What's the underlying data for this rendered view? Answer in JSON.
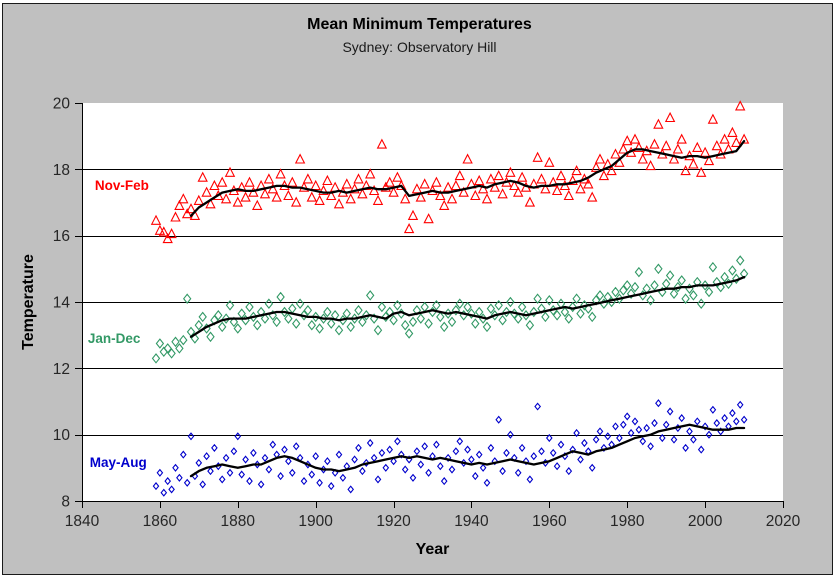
{
  "chart_data": {
    "type": "scatter",
    "title": "Mean Minimum Temperatures",
    "subtitle": "Sydney: Observatory Hill",
    "xlabel": "Year",
    "ylabel": "Temperature",
    "xlim": [
      1840,
      2020
    ],
    "ylim": [
      8,
      20
    ],
    "x_ticks": [
      1840,
      1860,
      1880,
      1900,
      1920,
      1940,
      1960,
      1980,
      2000,
      2020
    ],
    "y_ticks": [
      8,
      10,
      12,
      14,
      16,
      18,
      20
    ],
    "grid_y": [
      10,
      12,
      14,
      16,
      18
    ],
    "background": "#c0c0c0",
    "plot_background": "#ffffff",
    "axis_color": "#000000",
    "tick_label_color": "#262626",
    "trend_color": "#000000",
    "legend_position": "inline-left-labels",
    "series": [
      {
        "name": "Nov-Feb",
        "color": "#ff0000",
        "marker": "triangle",
        "label_pos": {
          "year": 1843.3,
          "temp": 17.53
        },
        "scatter": {
          "start_year": 1859,
          "step": 1,
          "values": [
            16.45,
            16.15,
            16.1,
            15.9,
            16.05,
            16.55,
            16.9,
            17.1,
            16.65,
            16.8,
            16.6,
            17.05,
            17.75,
            17.3,
            16.95,
            17.5,
            17.2,
            17.6,
            17.1,
            17.9,
            17.35,
            17.0,
            17.45,
            17.15,
            17.6,
            17.3,
            16.9,
            17.5,
            17.25,
            17.7,
            17.4,
            17.15,
            17.85,
            17.5,
            17.2,
            17.6,
            17.0,
            18.3,
            17.45,
            17.7,
            17.15,
            17.5,
            17.05,
            17.35,
            17.65,
            17.2,
            17.45,
            16.95,
            17.3,
            17.55,
            17.1,
            17.4,
            17.7,
            17.25,
            17.5,
            17.85,
            17.35,
            17.05,
            18.75,
            17.45,
            17.6,
            17.3,
            17.75,
            17.5,
            17.1,
            16.2,
            16.6,
            17.4,
            17.15,
            17.55,
            16.5,
            17.35,
            17.6,
            17.2,
            16.9,
            17.45,
            17.1,
            17.5,
            17.8,
            17.3,
            18.3,
            17.55,
            17.2,
            17.65,
            17.4,
            17.1,
            17.7,
            17.45,
            17.8,
            17.25,
            17.6,
            17.9,
            17.5,
            17.3,
            17.75,
            17.45,
            17.0,
            17.55,
            18.35,
            17.7,
            17.4,
            18.2,
            17.6,
            17.35,
            17.8,
            17.5,
            17.2,
            17.65,
            17.95,
            17.4,
            17.7,
            17.55,
            17.15,
            18.05,
            18.3,
            17.8,
            18.15,
            17.95,
            18.45,
            18.2,
            18.6,
            18.85,
            18.5,
            18.9,
            18.65,
            18.3,
            18.55,
            18.1,
            18.75,
            19.35,
            18.45,
            18.7,
            19.55,
            18.3,
            18.6,
            18.9,
            17.95,
            18.4,
            18.15,
            18.65,
            17.9,
            18.5,
            18.25,
            19.5,
            18.7,
            18.45,
            18.9,
            18.6,
            19.1,
            18.8,
            19.9,
            18.9
          ]
        },
        "trend": {
          "start_year": 1868,
          "step": 2,
          "values": [
            16.6,
            16.85,
            17.0,
            17.15,
            17.3,
            17.35,
            17.4,
            17.35,
            17.35,
            17.4,
            17.45,
            17.5,
            17.5,
            17.45,
            17.45,
            17.4,
            17.35,
            17.3,
            17.3,
            17.35,
            17.3,
            17.35,
            17.4,
            17.45,
            17.4,
            17.4,
            17.45,
            17.5,
            17.2,
            17.25,
            17.3,
            17.35,
            17.3,
            17.3,
            17.35,
            17.4,
            17.45,
            17.5,
            17.45,
            17.55,
            17.6,
            17.65,
            17.6,
            17.5,
            17.45,
            17.5,
            17.5,
            17.55,
            17.55,
            17.6,
            17.65,
            17.75,
            17.9,
            18.0,
            18.1,
            18.3,
            18.5,
            18.6,
            18.6,
            18.55,
            18.5,
            18.45,
            18.4,
            18.35,
            18.4,
            18.4,
            18.35,
            18.4,
            18.45,
            18.5,
            18.55,
            18.85
          ]
        }
      },
      {
        "name": "Jan-Dec",
        "color": "#339966",
        "marker": "diamond",
        "label_pos": {
          "year": 1841.5,
          "temp": 12.91
        },
        "scatter": {
          "start_year": 1859,
          "step": 1,
          "values": [
            12.3,
            12.75,
            12.5,
            12.6,
            12.45,
            12.8,
            12.6,
            12.85,
            14.1,
            13.1,
            12.9,
            13.3,
            13.55,
            13.2,
            12.95,
            13.45,
            13.6,
            13.25,
            13.5,
            13.9,
            13.4,
            13.2,
            13.65,
            13.45,
            13.85,
            13.55,
            13.3,
            13.7,
            13.5,
            13.95,
            13.6,
            13.4,
            14.15,
            13.7,
            13.5,
            13.8,
            13.35,
            13.95,
            13.6,
            13.75,
            13.3,
            13.55,
            13.2,
            13.5,
            13.7,
            13.35,
            13.6,
            13.15,
            13.45,
            13.65,
            13.25,
            13.5,
            13.75,
            13.4,
            13.6,
            14.2,
            13.5,
            13.15,
            13.85,
            13.55,
            13.7,
            13.45,
            13.9,
            13.65,
            13.3,
            13.05,
            13.4,
            13.75,
            13.5,
            13.85,
            13.35,
            13.7,
            13.9,
            13.55,
            13.25,
            13.65,
            13.4,
            13.75,
            13.95,
            13.6,
            13.85,
            13.65,
            13.35,
            13.7,
            13.5,
            13.25,
            13.8,
            13.6,
            13.9,
            13.45,
            13.7,
            14.0,
            13.65,
            13.5,
            13.85,
            13.6,
            13.3,
            13.7,
            14.1,
            13.8,
            13.55,
            14.05,
            13.75,
            13.6,
            13.95,
            13.7,
            13.5,
            13.85,
            14.1,
            13.65,
            13.9,
            13.8,
            13.55,
            14.05,
            14.2,
            13.95,
            14.15,
            14.0,
            14.3,
            14.1,
            14.35,
            14.5,
            14.25,
            14.45,
            14.9,
            14.2,
            14.4,
            14.05,
            14.5,
            15.0,
            14.3,
            14.55,
            14.8,
            14.25,
            14.45,
            14.65,
            14.1,
            14.4,
            14.2,
            14.6,
            13.95,
            14.5,
            14.3,
            15.05,
            14.6,
            14.45,
            14.75,
            14.55,
            14.95,
            14.7,
            15.25,
            14.85
          ]
        },
        "trend": {
          "start_year": 1868,
          "step": 2,
          "values": [
            12.95,
            13.1,
            13.25,
            13.35,
            13.45,
            13.5,
            13.5,
            13.5,
            13.55,
            13.6,
            13.65,
            13.7,
            13.7,
            13.65,
            13.6,
            13.55,
            13.55,
            13.5,
            13.5,
            13.45,
            13.5,
            13.5,
            13.55,
            13.6,
            13.55,
            13.5,
            13.65,
            13.7,
            13.6,
            13.65,
            13.7,
            13.75,
            13.7,
            13.65,
            13.7,
            13.65,
            13.6,
            13.55,
            13.5,
            13.6,
            13.65,
            13.7,
            13.65,
            13.6,
            13.65,
            13.7,
            13.75,
            13.8,
            13.85,
            13.8,
            13.85,
            13.9,
            13.95,
            14.0,
            14.05,
            14.1,
            14.15,
            14.2,
            14.25,
            14.3,
            14.35,
            14.4,
            14.4,
            14.45,
            14.45,
            14.5,
            14.5,
            14.5,
            14.55,
            14.6,
            14.65,
            14.75
          ]
        }
      },
      {
        "name": "May-Aug",
        "color": "#0000cc",
        "marker": "diamond-small",
        "label_pos": {
          "year": 1842.0,
          "temp": 9.18
        },
        "scatter": {
          "start_year": 1859,
          "step": 1,
          "values": [
            8.45,
            8.85,
            8.25,
            8.6,
            8.35,
            9.0,
            8.7,
            9.4,
            8.55,
            9.95,
            8.75,
            9.15,
            8.5,
            9.35,
            8.9,
            9.6,
            9.05,
            8.65,
            9.3,
            8.85,
            9.5,
            9.95,
            8.8,
            9.25,
            8.6,
            9.45,
            9.1,
            8.5,
            9.3,
            8.95,
            9.7,
            9.4,
            8.75,
            9.55,
            9.2,
            8.85,
            9.65,
            9.3,
            8.6,
            9.1,
            8.8,
            9.35,
            8.55,
            8.95,
            9.2,
            8.45,
            8.85,
            9.4,
            8.7,
            9.05,
            8.35,
            9.25,
            9.6,
            8.9,
            9.15,
            9.75,
            9.3,
            8.65,
            9.45,
            9.0,
            9.55,
            9.2,
            9.8,
            9.4,
            8.95,
            9.25,
            8.7,
            9.5,
            9.1,
            9.65,
            8.85,
            9.35,
            9.7,
            9.05,
            8.6,
            9.3,
            8.95,
            9.5,
            9.8,
            9.15,
            9.55,
            9.25,
            8.75,
            9.4,
            9.0,
            8.55,
            9.6,
            9.2,
            10.45,
            8.9,
            9.45,
            10.0,
            9.3,
            8.85,
            9.6,
            9.2,
            8.65,
            9.35,
            10.85,
            9.5,
            9.15,
            9.9,
            9.45,
            9.05,
            9.7,
            9.35,
            8.9,
            9.55,
            10.05,
            9.25,
            9.75,
            9.5,
            9.0,
            9.85,
            10.1,
            9.6,
            9.95,
            9.7,
            10.25,
            9.9,
            10.3,
            10.55,
            10.05,
            10.4,
            10.15,
            9.8,
            10.2,
            9.65,
            10.35,
            10.95,
            9.9,
            10.3,
            10.7,
            9.85,
            10.2,
            10.5,
            9.6,
            10.1,
            9.85,
            10.4,
            9.55,
            10.25,
            10.0,
            10.75,
            10.35,
            10.1,
            10.5,
            10.25,
            10.65,
            10.4,
            10.9,
            10.45
          ]
        },
        "trend": {
          "start_year": 1868,
          "step": 2,
          "values": [
            8.75,
            8.9,
            9.0,
            9.05,
            9.1,
            9.05,
            9.0,
            9.05,
            9.1,
            9.1,
            9.2,
            9.3,
            9.35,
            9.3,
            9.2,
            9.1,
            9.0,
            8.95,
            8.95,
            8.9,
            8.95,
            9.0,
            9.1,
            9.15,
            9.2,
            9.25,
            9.3,
            9.35,
            9.3,
            9.35,
            9.3,
            9.25,
            9.3,
            9.25,
            9.2,
            9.15,
            9.1,
            9.15,
            9.1,
            9.15,
            9.2,
            9.25,
            9.2,
            9.15,
            9.1,
            9.15,
            9.2,
            9.3,
            9.4,
            9.5,
            9.45,
            9.4,
            9.5,
            9.55,
            9.6,
            9.7,
            9.8,
            9.9,
            9.95,
            10.0,
            10.1,
            10.15,
            10.2,
            10.25,
            10.3,
            10.25,
            10.2,
            10.15,
            10.15,
            10.15,
            10.2,
            10.2
          ]
        }
      }
    ]
  }
}
